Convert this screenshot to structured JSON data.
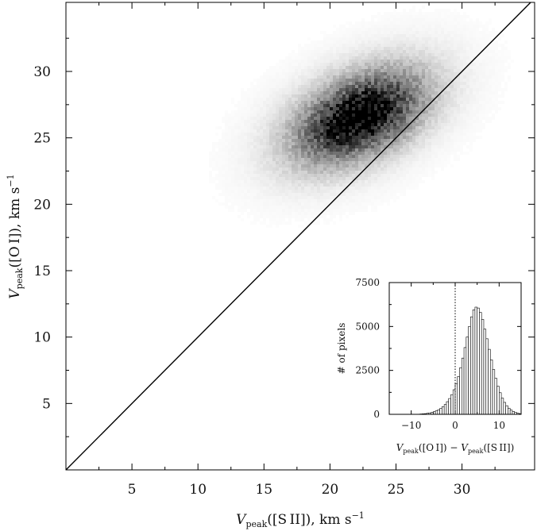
{
  "chart_data": [
    {
      "type": "heatmap",
      "xlabel": "V_peak([S II]),   km s^-1",
      "ylabel": "V_peak([O I]),   km s^-1",
      "xlabel_parts": {
        "main": "V",
        "sub": "peak",
        "tail": "([S II]),   km s",
        "sup": "−1"
      },
      "ylabel_parts": {
        "main": "V",
        "sub": "peak",
        "tail": "([O I]),   km s",
        "sup": "−1"
      },
      "xlim": [
        0,
        35.5
      ],
      "ylim": [
        0,
        35.2
      ],
      "xticks": [
        5,
        10,
        15,
        20,
        25,
        30
      ],
      "yticks": [
        5,
        10,
        15,
        20,
        25,
        30
      ],
      "xtick_labels": [
        "5",
        "10",
        "15",
        "20",
        "25",
        "30"
      ],
      "ytick_labels": [
        "5",
        "10",
        "15",
        "20",
        "25",
        "30"
      ],
      "density_peak": {
        "x": 22.2,
        "y": 26.6
      },
      "density_spread": {
        "x_sigma": 3.2,
        "y_sigma": 2.3,
        "correlation": 0.45
      },
      "reference_line": {
        "label": "y = x",
        "from": [
          0,
          0
        ],
        "to": [
          35.5,
          35.5
        ]
      },
      "grid": false,
      "colormap": "grayscale (white = low, black = high)"
    },
    {
      "type": "bar",
      "description_role": "inset histogram",
      "xlabel": "V_peak([O I]) − V_peak([S II])",
      "ylabel": "# of pixels",
      "xlabel_parts": [
        {
          "main": "V",
          "sub": "peak",
          "tail": "([O I]) − "
        },
        {
          "main": "V",
          "sub": "peak",
          "tail": "([S II])"
        }
      ],
      "xlim": [
        -15,
        15
      ],
      "ylim": [
        0,
        7500
      ],
      "xticks": [
        -10,
        0,
        10
      ],
      "yticks": [
        0,
        2500,
        5000,
        7500
      ],
      "xtick_labels": [
        "−10",
        "0",
        "10"
      ],
      "ytick_labels": [
        "0",
        "2500",
        "5000",
        "7500"
      ],
      "bin_width": 0.5,
      "bin_centers": [
        -14.75,
        -14.25,
        -13.75,
        -13.25,
        -12.75,
        -12.25,
        -11.75,
        -11.25,
        -10.75,
        -10.25,
        -9.75,
        -9.25,
        -8.75,
        -8.25,
        -7.75,
        -7.25,
        -6.75,
        -6.25,
        -5.75,
        -5.25,
        -4.75,
        -4.25,
        -3.75,
        -3.25,
        -2.75,
        -2.25,
        -1.75,
        -1.25,
        -0.75,
        -0.25,
        0.25,
        0.75,
        1.25,
        1.75,
        2.25,
        2.75,
        3.25,
        3.75,
        4.25,
        4.75,
        5.25,
        5.75,
        6.25,
        6.75,
        7.25,
        7.75,
        8.25,
        8.75,
        9.25,
        9.75,
        10.25,
        10.75,
        11.25,
        11.75,
        12.25,
        12.75,
        13.25,
        13.75,
        14.25,
        14.75
      ],
      "values": [
        0,
        0,
        0,
        0,
        0,
        0,
        0,
        0,
        0,
        0,
        0,
        0,
        0,
        10,
        20,
        30,
        40,
        60,
        80,
        110,
        150,
        200,
        260,
        340,
        440,
        560,
        720,
        900,
        1120,
        1400,
        1750,
        2150,
        2650,
        3200,
        3800,
        4400,
        5000,
        5550,
        5950,
        6100,
        6050,
        5800,
        5400,
        4850,
        4300,
        3700,
        3100,
        2550,
        2050,
        1600,
        1230,
        920,
        680,
        490,
        350,
        240,
        160,
        110,
        70,
        40
      ],
      "reference_line": {
        "x": 0,
        "style": "dotted"
      },
      "grid": false
    }
  ]
}
